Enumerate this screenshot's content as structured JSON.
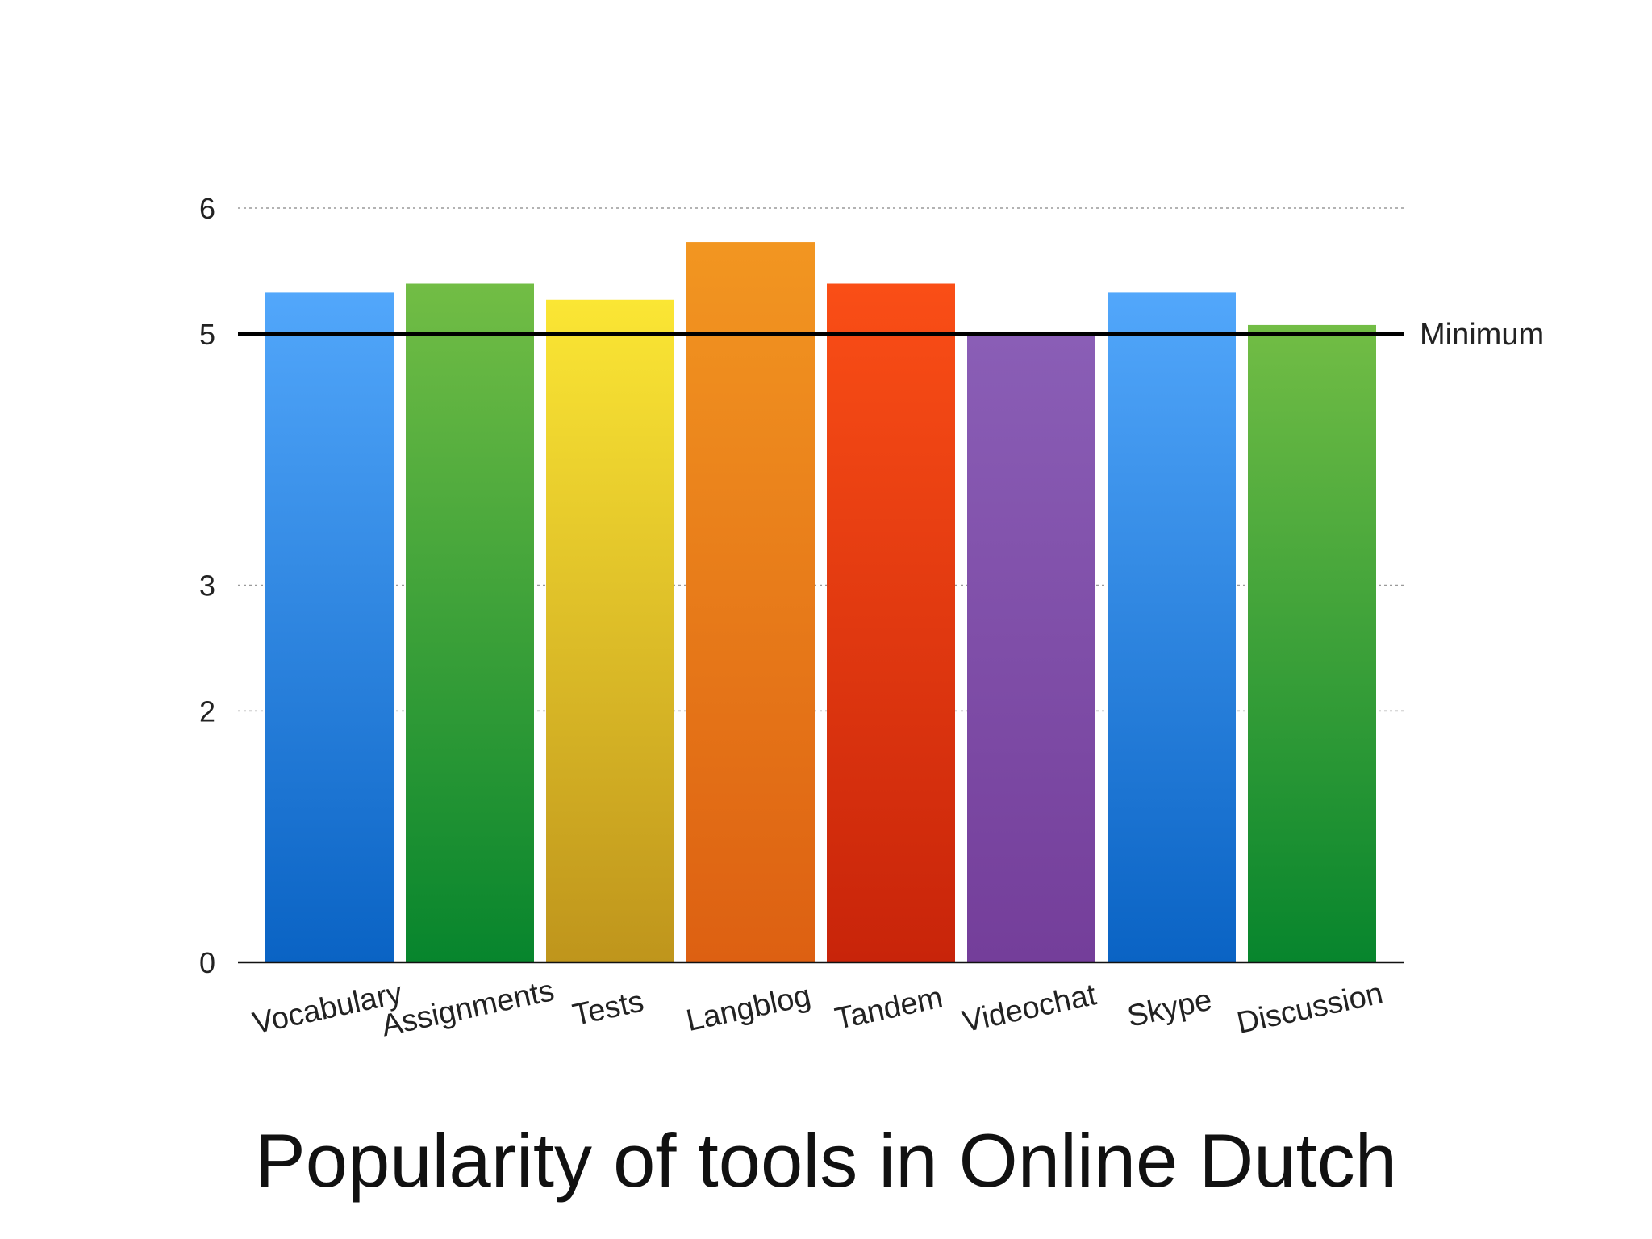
{
  "chart_data": {
    "type": "bar",
    "title": "Popularity of tools in Online Dutch",
    "xlabel": "",
    "ylabel": "",
    "categories": [
      "Vocabulary",
      "Assignments",
      "Tests",
      "Langblog",
      "Tandem",
      "Videochat",
      "Skype",
      "Discussion"
    ],
    "values": [
      5.33,
      5.4,
      5.27,
      5.73,
      5.4,
      5.0,
      5.33,
      5.07
    ],
    "y_ticks": [
      "0",
      "2",
      "3",
      "5",
      "6"
    ],
    "ylim": [
      0,
      6
    ],
    "grid": true,
    "reference_line": {
      "label": "Minimum",
      "value": 5
    },
    "bar_colors": [
      {
        "top": "#52a7fb",
        "bottom": "#0a63c4"
      },
      {
        "top": "#72bd45",
        "bottom": "#07852d"
      },
      {
        "top": "#fbe634",
        "bottom": "#bf951c"
      },
      {
        "top": "#f29621",
        "bottom": "#dd6012"
      },
      {
        "top": "#fa4e16",
        "bottom": "#c8240a"
      },
      {
        "top": "#8a5eb6",
        "bottom": "#743e9a"
      },
      {
        "top": "#52a7fb",
        "bottom": "#0a63c4"
      },
      {
        "top": "#72bd45",
        "bottom": "#07852d"
      }
    ]
  }
}
